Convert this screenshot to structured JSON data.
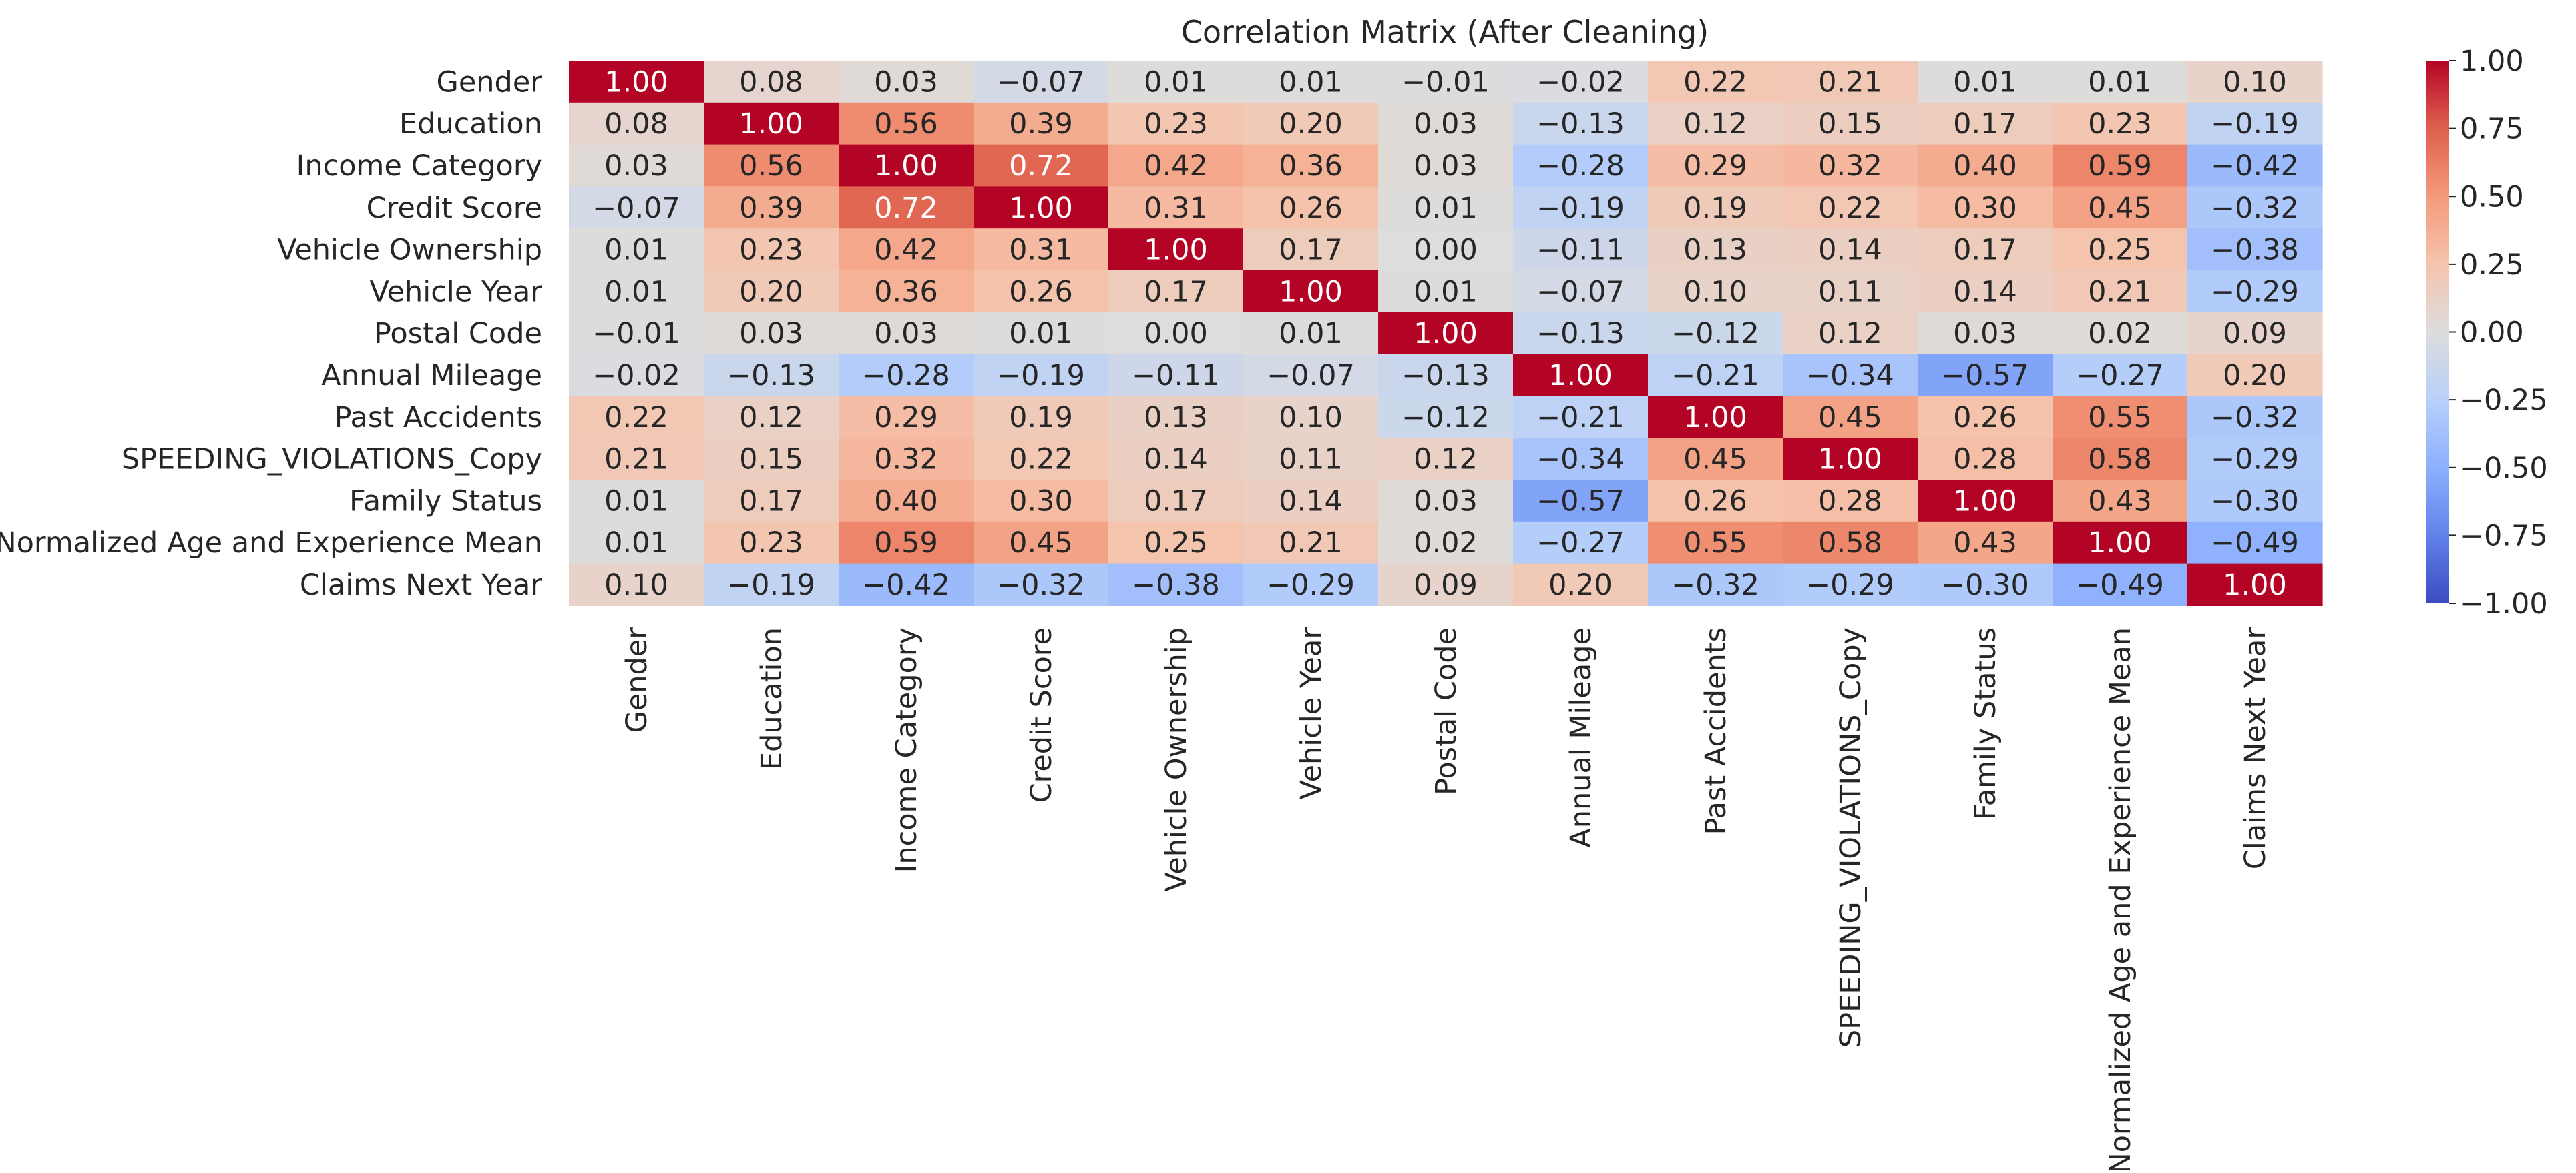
{
  "chart_data": {
    "type": "heatmap",
    "title": "Correlation Matrix (After Cleaning)",
    "labels": [
      "Gender",
      "Education",
      "Income Category",
      "Credit Score",
      "Vehicle Ownership",
      "Vehicle Year",
      "Postal Code",
      "Annual Mileage",
      "Past Accidents",
      "SPEEDING_VIOLATIONS_Copy",
      "Family Status",
      "Normalized Age and Experience Mean",
      "Claims Next Year"
    ],
    "values": [
      [
        1.0,
        0.08,
        0.03,
        -0.07,
        0.01,
        0.01,
        -0.01,
        -0.02,
        0.22,
        0.21,
        0.01,
        0.01,
        0.1
      ],
      [
        0.08,
        1.0,
        0.56,
        0.39,
        0.23,
        0.2,
        0.03,
        -0.13,
        0.12,
        0.15,
        0.17,
        0.23,
        -0.19
      ],
      [
        0.03,
        0.56,
        1.0,
        0.72,
        0.42,
        0.36,
        0.03,
        -0.28,
        0.29,
        0.32,
        0.4,
        0.59,
        -0.42
      ],
      [
        -0.07,
        0.39,
        0.72,
        1.0,
        0.31,
        0.26,
        0.01,
        -0.19,
        0.19,
        0.22,
        0.3,
        0.45,
        -0.32
      ],
      [
        0.01,
        0.23,
        0.42,
        0.31,
        1.0,
        0.17,
        0.0,
        -0.11,
        0.13,
        0.14,
        0.17,
        0.25,
        -0.38
      ],
      [
        0.01,
        0.2,
        0.36,
        0.26,
        0.17,
        1.0,
        0.01,
        -0.07,
        0.1,
        0.11,
        0.14,
        0.21,
        -0.29
      ],
      [
        -0.01,
        0.03,
        0.03,
        0.01,
        0.0,
        0.01,
        1.0,
        -0.13,
        -0.12,
        0.12,
        0.03,
        0.02,
        0.09
      ],
      [
        -0.02,
        -0.13,
        -0.28,
        -0.19,
        -0.11,
        -0.07,
        -0.13,
        1.0,
        -0.21,
        -0.34,
        -0.57,
        -0.27,
        0.2
      ],
      [
        0.22,
        0.12,
        0.29,
        0.19,
        0.13,
        0.1,
        -0.12,
        -0.21,
        1.0,
        0.45,
        0.26,
        0.55,
        -0.32
      ],
      [
        0.21,
        0.15,
        0.32,
        0.22,
        0.14,
        0.11,
        0.12,
        -0.34,
        0.45,
        1.0,
        0.28,
        0.58,
        -0.29
      ],
      [
        0.01,
        0.17,
        0.4,
        0.3,
        0.17,
        0.14,
        0.03,
        -0.57,
        0.26,
        0.28,
        1.0,
        0.43,
        -0.3
      ],
      [
        0.01,
        0.23,
        0.59,
        0.45,
        0.25,
        0.21,
        0.02,
        -0.27,
        0.55,
        0.58,
        0.43,
        1.0,
        -0.49
      ],
      [
        0.1,
        -0.19,
        -0.42,
        -0.32,
        -0.38,
        -0.29,
        0.09,
        0.2,
        -0.32,
        -0.29,
        -0.3,
        -0.49,
        1.0
      ]
    ],
    "colormap": "coolwarm",
    "vmin": -1.0,
    "vmax": 1.0,
    "colorbar_ticks": [
      "1.00",
      "0.75",
      "0.50",
      "0.25",
      "0.00",
      "−0.25",
      "−0.50",
      "−0.75",
      "−1.00"
    ],
    "value_format": "2 decimals"
  }
}
